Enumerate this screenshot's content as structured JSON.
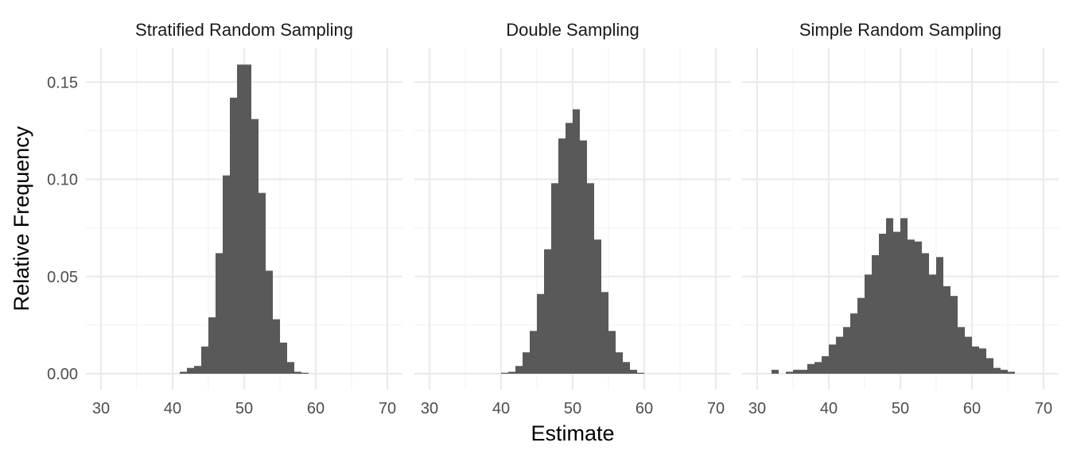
{
  "chart_data": {
    "type": "bar",
    "title": "",
    "xlabel": "Estimate",
    "ylabel": "Relative Frequency",
    "xlim": [
      30,
      70
    ],
    "ylim": [
      0,
      0.16
    ],
    "x_ticks": [
      30,
      40,
      50,
      60,
      70
    ],
    "y_ticks": [
      0.0,
      0.05,
      0.1,
      0.15
    ],
    "y_tick_labels": [
      "0.00",
      "0.05",
      "0.10",
      "0.15"
    ],
    "grid": true,
    "bin_width": 1,
    "bar_color": "#595959",
    "panels": [
      {
        "title": "Stratified Random Sampling",
        "bins_start": [
          41,
          42,
          43,
          44,
          45,
          46,
          47,
          48,
          49,
          50,
          51,
          52,
          53,
          54,
          55,
          56,
          57,
          58
        ],
        "values": [
          0.001,
          0.003,
          0.004,
          0.014,
          0.029,
          0.062,
          0.102,
          0.142,
          0.159,
          0.159,
          0.131,
          0.093,
          0.053,
          0.028,
          0.016,
          0.006,
          0.001,
          0.0005
        ]
      },
      {
        "title": "Double Sampling",
        "bins_start": [
          40,
          41,
          42,
          43,
          44,
          45,
          46,
          47,
          48,
          49,
          50,
          51,
          52,
          53,
          54,
          55,
          56,
          57,
          58,
          59
        ],
        "values": [
          0.0005,
          0.001,
          0.004,
          0.011,
          0.022,
          0.041,
          0.064,
          0.098,
          0.121,
          0.129,
          0.136,
          0.12,
          0.098,
          0.069,
          0.042,
          0.022,
          0.011,
          0.006,
          0.002,
          0.0005
        ]
      },
      {
        "title": "Simple Random Sampling",
        "bins_start": [
          32,
          33,
          34,
          35,
          36,
          37,
          38,
          39,
          40,
          41,
          42,
          43,
          44,
          45,
          46,
          47,
          48,
          49,
          50,
          51,
          52,
          53,
          54,
          55,
          56,
          57,
          58,
          59,
          60,
          61,
          62,
          63,
          64,
          65
        ],
        "values": [
          0.002,
          0,
          0.001,
          0.002,
          0.002,
          0.005,
          0.006,
          0.009,
          0.015,
          0.019,
          0.024,
          0.031,
          0.039,
          0.051,
          0.061,
          0.072,
          0.08,
          0.073,
          0.08,
          0.069,
          0.068,
          0.062,
          0.051,
          0.06,
          0.045,
          0.04,
          0.024,
          0.019,
          0.014,
          0.013,
          0.008,
          0.003,
          0.002,
          0.001
        ]
      }
    ]
  }
}
